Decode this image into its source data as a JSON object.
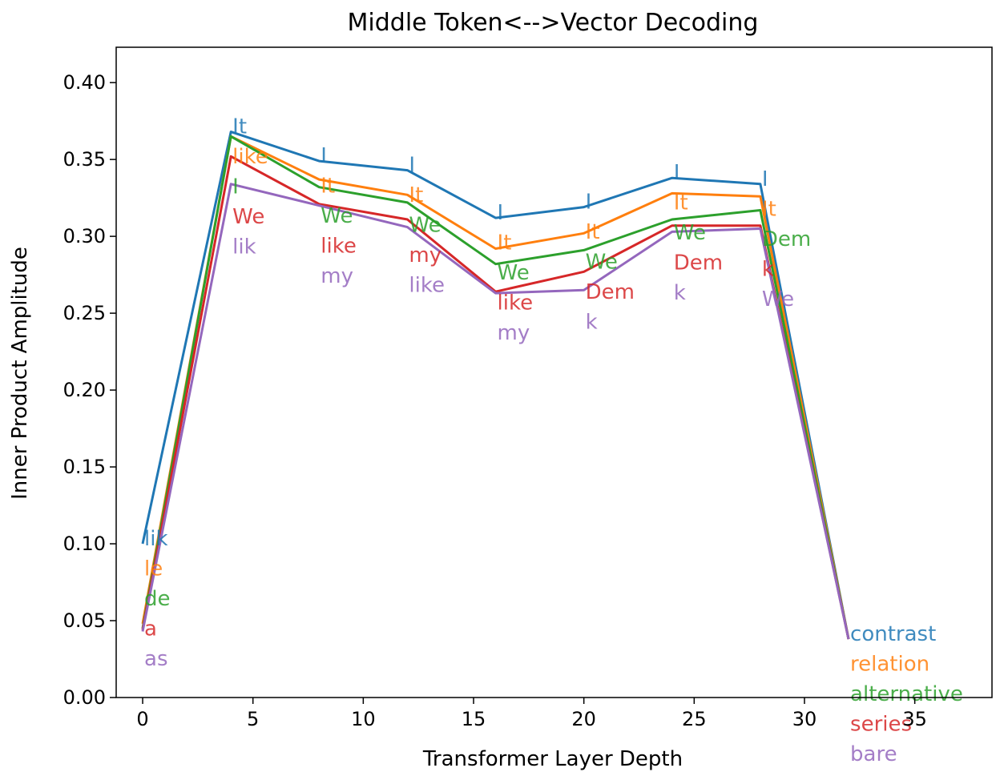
{
  "chart_data": {
    "type": "line",
    "title": "Middle Token<-->Vector Decoding",
    "xlabel": "Transformer Layer Depth",
    "ylabel": "Inner Product Amplitude",
    "xlim": [
      -1.2,
      38.5
    ],
    "ylim": [
      0.0,
      0.423
    ],
    "xticks": [
      0,
      5,
      10,
      15,
      20,
      25,
      30,
      35
    ],
    "yticks": [
      0.0,
      0.05,
      0.1,
      0.15,
      0.2,
      0.25,
      0.3,
      0.35,
      0.4
    ],
    "ytick_labels": [
      "0.00",
      "0.05",
      "0.10",
      "0.15",
      "0.20",
      "0.25",
      "0.30",
      "0.35",
      "0.40"
    ],
    "grid": false,
    "legend": "none",
    "x": [
      0,
      4,
      8,
      12,
      16,
      20,
      24,
      28,
      32
    ],
    "series": [
      {
        "color": "#1f77b4",
        "values": [
          0.1,
          0.368,
          0.349,
          0.343,
          0.312,
          0.319,
          0.338,
          0.334,
          0.038
        ]
      },
      {
        "color": "#ff7f0e",
        "values": [
          0.048,
          0.365,
          0.337,
          0.327,
          0.292,
          0.302,
          0.328,
          0.326,
          0.038
        ]
      },
      {
        "color": "#2ca02c",
        "values": [
          0.045,
          0.365,
          0.332,
          0.322,
          0.282,
          0.291,
          0.311,
          0.317,
          0.038
        ]
      },
      {
        "color": "#d62728",
        "values": [
          0.044,
          0.352,
          0.321,
          0.311,
          0.264,
          0.277,
          0.307,
          0.307,
          0.038
        ]
      },
      {
        "color": "#9467bd",
        "values": [
          0.043,
          0.334,
          0.32,
          0.306,
          0.263,
          0.265,
          0.303,
          0.305,
          0.038
        ]
      }
    ],
    "token_labels": [
      [
        "lik",
        "le",
        "de",
        "a",
        "as"
      ],
      [
        "It",
        "like",
        "I",
        "We",
        "lik"
      ],
      [
        "I",
        "It",
        "We",
        "like",
        "my"
      ],
      [
        "I",
        "It",
        "We",
        "my",
        "like"
      ],
      [
        "I",
        "It",
        "We",
        "like",
        "my"
      ],
      [
        "I",
        "It",
        "We",
        "Dem",
        "k"
      ],
      [
        "I",
        "It",
        "We",
        "Dem",
        "k"
      ],
      [
        "I",
        "It",
        "Dem",
        "k",
        "We"
      ],
      [
        "contrast",
        "relation",
        "alternative",
        "series",
        "bare"
      ]
    ]
  }
}
